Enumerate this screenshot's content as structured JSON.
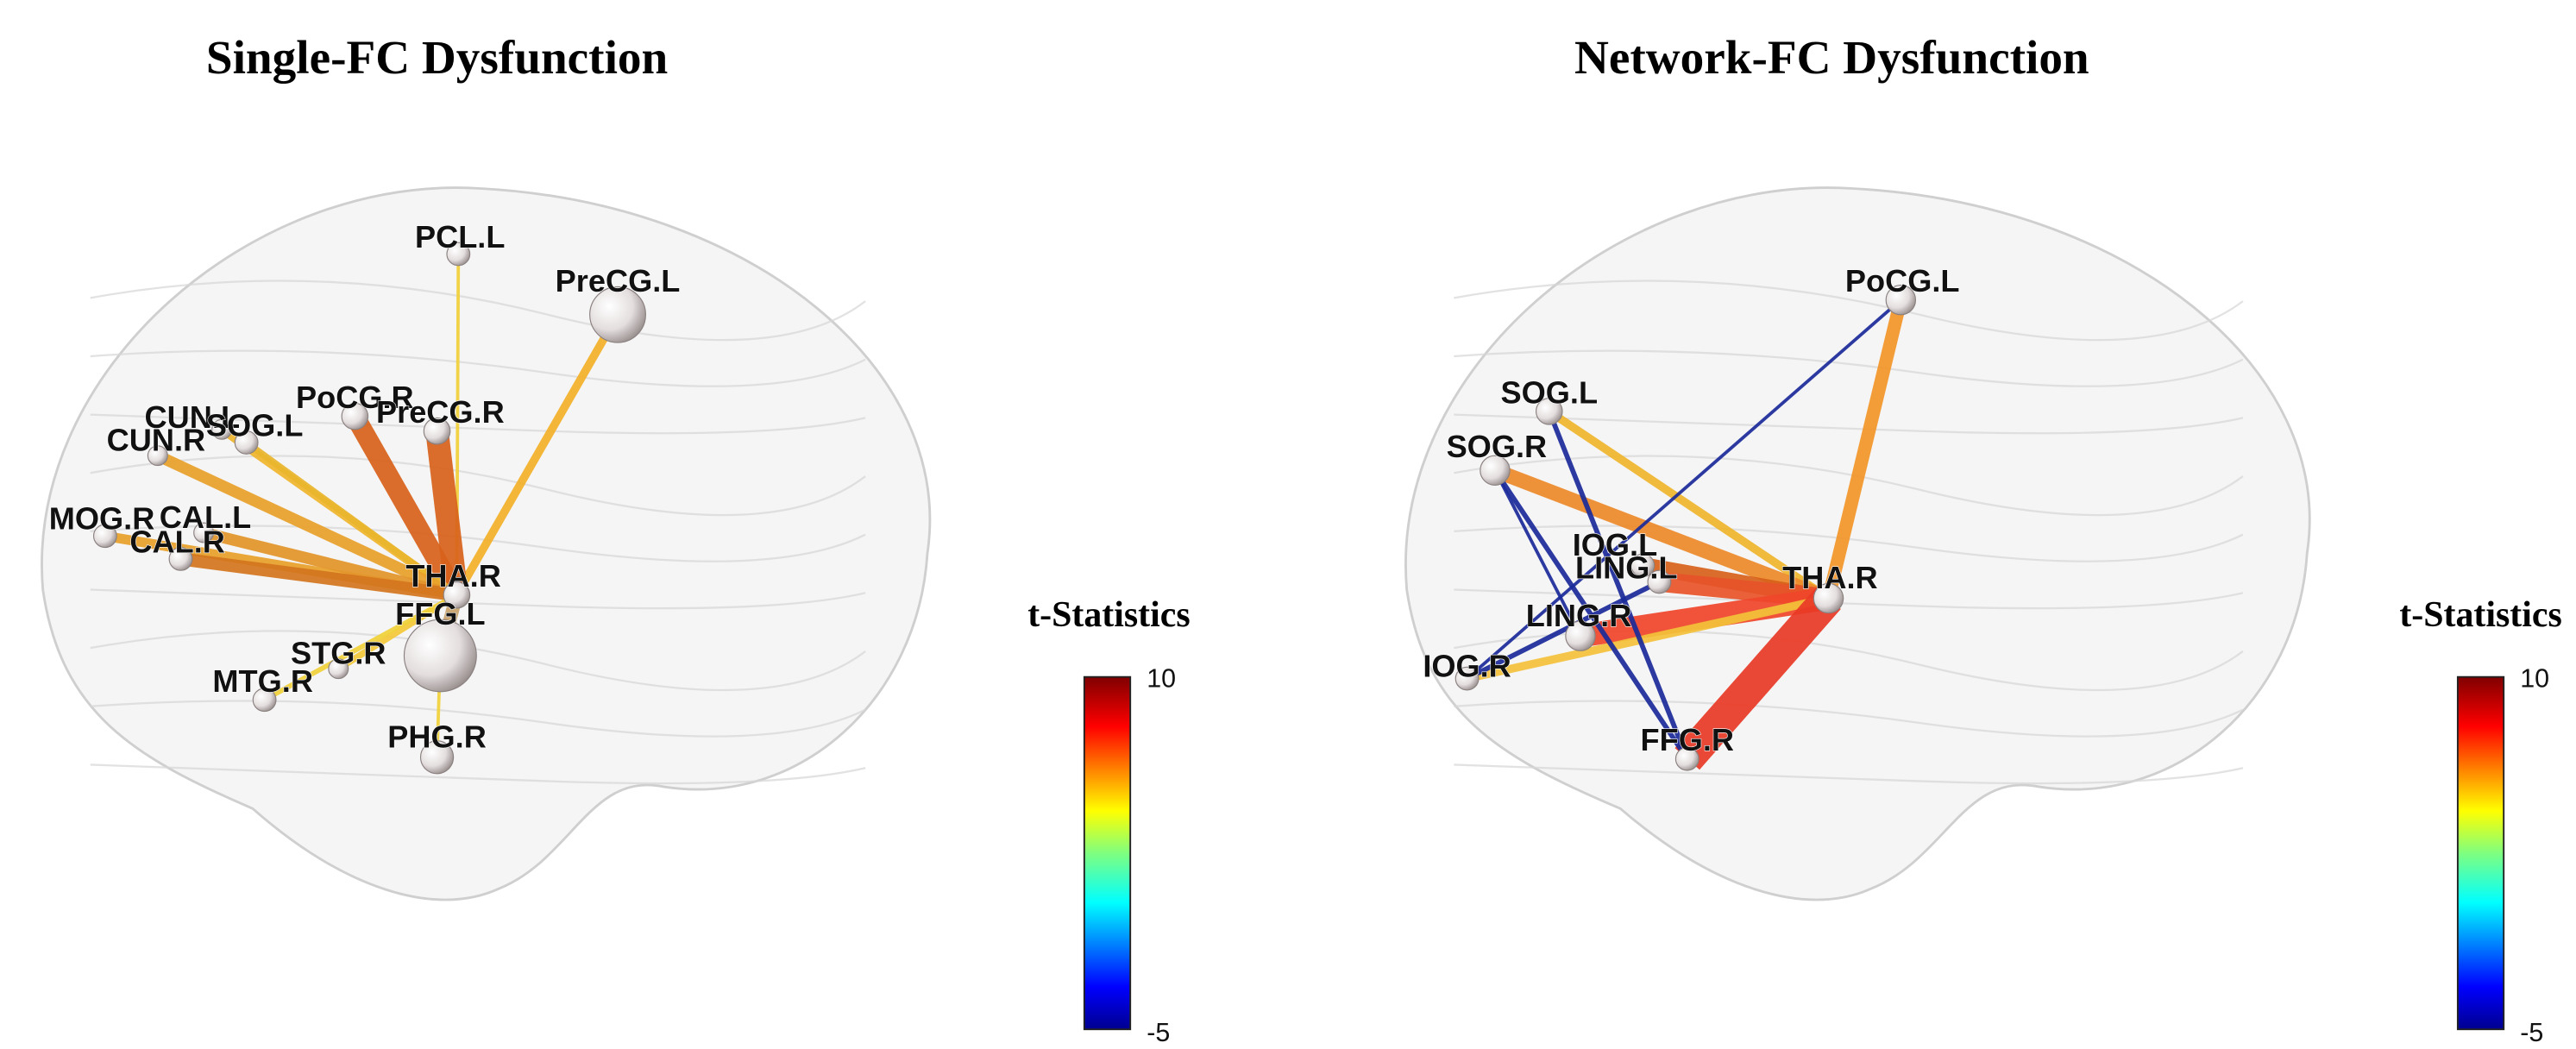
{
  "panels": [
    {
      "title": "Single-FC Dysfunction",
      "nodes": [
        {
          "label": "PCL.L"
        },
        {
          "label": "PreCG.L"
        },
        {
          "label": "PoCG.R"
        },
        {
          "label": "PreCG.R"
        },
        {
          "label": "CUN.L"
        },
        {
          "label": "SOG.L"
        },
        {
          "label": "CUN.R"
        },
        {
          "label": "MOG.R"
        },
        {
          "label": "CAL.L"
        },
        {
          "label": "CAL.R"
        },
        {
          "label": "THA.R"
        },
        {
          "label": "FFG.L"
        },
        {
          "label": "STG.R"
        },
        {
          "label": "MTG.R"
        },
        {
          "label": "PHG.R"
        }
      ],
      "colorbar": {
        "title": "t-Statistics",
        "ticks": [
          10,
          -5
        ]
      }
    },
    {
      "title": "Network-FC Dysfunction",
      "nodes": [
        {
          "label": "PoCG.L"
        },
        {
          "label": "SOG.L"
        },
        {
          "label": "SOG.R"
        },
        {
          "label": "IOG.L"
        },
        {
          "label": "LING.L"
        },
        {
          "label": "LING.R"
        },
        {
          "label": "IOG.R"
        },
        {
          "label": "THA.R"
        },
        {
          "label": "FFG.R"
        }
      ],
      "colorbar": {
        "title": "t-Statistics",
        "ticks": [
          10,
          -5
        ]
      }
    }
  ]
}
